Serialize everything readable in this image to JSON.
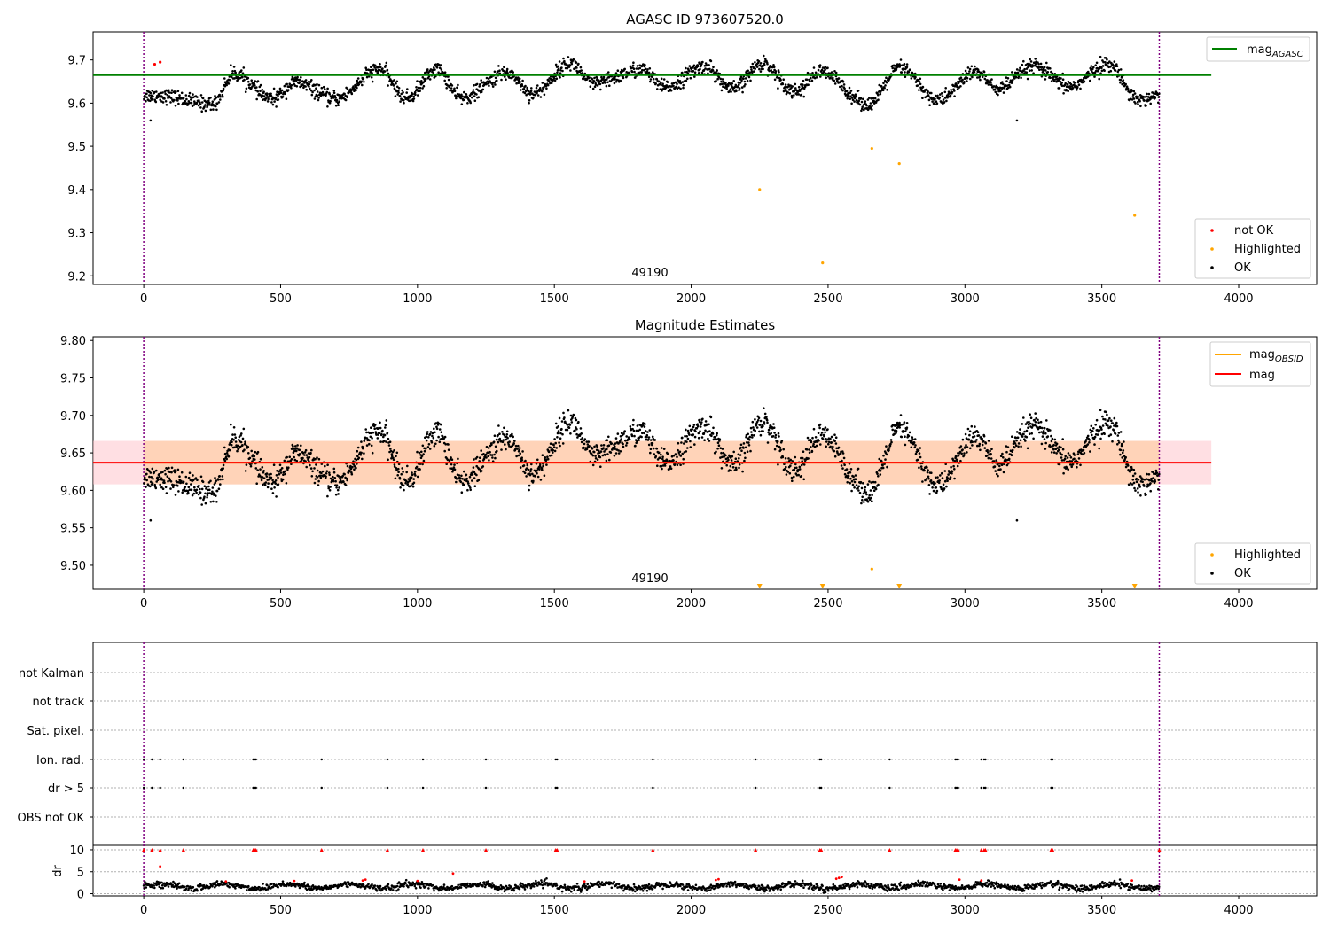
{
  "colors": {
    "ok": "#000000",
    "not_ok": "#ff0000",
    "highlighted": "#ffa500",
    "mag_agasc": "#008000",
    "mag_obsid": "#ffa500",
    "mag": "#ff0000",
    "obs_marker": "#800080"
  },
  "chart_data": [
    {
      "type": "scatter",
      "title": "AGASC ID 973607520.0",
      "annotation": "49190",
      "xlim": [
        -185,
        4285
      ],
      "ylim": [
        9.18,
        9.765
      ],
      "xticks": [
        "0",
        "500",
        "1000",
        "1500",
        "2000",
        "2500",
        "3000",
        "3500",
        "4000"
      ],
      "yticks": [
        "9.2",
        "9.3",
        "9.4",
        "9.5",
        "9.6",
        "9.7"
      ],
      "obs_boundaries": [
        0,
        3710
      ],
      "mag_agasc": {
        "value": 9.665,
        "x_range": [
          -185,
          3900
        ]
      },
      "ok_series": {
        "name": "OK",
        "baseline": 9.638,
        "x_range": [
          0,
          3710
        ],
        "peaks": [
          [
            50,
            9.618
          ],
          [
            250,
            9.598
          ],
          [
            330,
            9.668
          ],
          [
            470,
            9.61
          ],
          [
            555,
            9.648
          ],
          [
            700,
            9.61
          ],
          [
            860,
            9.678
          ],
          [
            960,
            9.612
          ],
          [
            1070,
            9.678
          ],
          [
            1160,
            9.612
          ],
          [
            1330,
            9.67
          ],
          [
            1420,
            9.622
          ],
          [
            1560,
            9.692
          ],
          [
            1640,
            9.645
          ],
          [
            1820,
            9.678
          ],
          [
            1900,
            9.636
          ],
          [
            2050,
            9.685
          ],
          [
            2150,
            9.632
          ],
          [
            2260,
            9.692
          ],
          [
            2380,
            9.628
          ],
          [
            2470,
            9.672
          ],
          [
            2650,
            9.598
          ],
          [
            2760,
            9.682
          ],
          [
            2900,
            9.607
          ],
          [
            3040,
            9.672
          ],
          [
            3120,
            9.634
          ],
          [
            3250,
            9.685
          ],
          [
            3380,
            9.638
          ],
          [
            3520,
            9.69
          ],
          [
            3640,
            9.608
          ],
          [
            3710,
            9.618
          ]
        ]
      },
      "not_ok_points": [
        [
          40,
          9.69
        ],
        [
          60,
          9.695
        ]
      ],
      "highlighted_points": [
        [
          2250,
          9.4
        ],
        [
          2480,
          9.23
        ],
        [
          2660,
          9.495
        ],
        [
          2760,
          9.46
        ],
        [
          3620,
          9.34
        ]
      ],
      "outliers": [
        [
          3190,
          9.56
        ],
        [
          25,
          9.56
        ]
      ],
      "legend_top": [
        "mag_{AGASC}"
      ],
      "legend_bottom": [
        "not OK",
        "Highlighted",
        "OK"
      ]
    },
    {
      "type": "scatter",
      "title": "Magnitude Estimates",
      "annotation": "49190",
      "xlim": [
        -185,
        4285
      ],
      "ylim": [
        9.468,
        9.805
      ],
      "xticks": [
        "0",
        "500",
        "1000",
        "1500",
        "2000",
        "2500",
        "3000",
        "3500",
        "4000"
      ],
      "yticks": [
        "9.50",
        "9.55",
        "9.60",
        "9.65",
        "9.70",
        "9.75",
        "9.80"
      ],
      "obs_boundaries": [
        0,
        3710
      ],
      "mag": {
        "value": 9.637,
        "x_range": [
          -185,
          3900
        ]
      },
      "mag_obsid": {
        "value": 9.637,
        "x_range": [
          0,
          3710
        ]
      },
      "mag_band": {
        "low": 9.608,
        "high": 9.666,
        "x_range": [
          -185,
          3900
        ]
      },
      "obsid_band": {
        "low": 9.608,
        "high": 9.666,
        "x_range": [
          0,
          3710
        ]
      },
      "highlighted_points": [
        [
          2660,
          9.495
        ]
      ],
      "highlighted_clipped_x": [
        2250,
        2480,
        2760,
        3620
      ],
      "outliers": [
        [
          3190,
          9.56
        ],
        [
          25,
          9.56
        ]
      ],
      "legend_top": [
        "mag_{OBSID}",
        "mag"
      ],
      "legend_bottom": [
        "Highlighted",
        "OK"
      ]
    },
    {
      "type": "scatter",
      "xlim": [
        -185,
        4285
      ],
      "xticks": [
        "0",
        "500",
        "1000",
        "1500",
        "2000",
        "2500",
        "3000",
        "3500",
        "4000"
      ],
      "obs_boundaries": [
        0,
        3710
      ],
      "flag_rows": [
        "not Kalman",
        "not track",
        "Sat. pixel.",
        "Ion. rad.",
        "dr > 5",
        "OBS not OK"
      ],
      "flag_events_x": [
        0,
        30,
        60,
        145,
        400,
        405,
        410,
        650,
        890,
        1020,
        1250,
        1505,
        1510,
        1860,
        2235,
        2470,
        2475,
        2725,
        2965,
        2970,
        2975,
        3060,
        3070,
        3075,
        3315,
        3320,
        3710
      ],
      "not_kalman_x": [
        3710
      ],
      "dr": {
        "ylabel": "dr",
        "ylim": [
          -0.5,
          11
        ],
        "yticks": [
          "0",
          "5",
          "10"
        ],
        "baseline": 1.7,
        "x_range": [
          0,
          3710
        ],
        "clip_value": 10,
        "clipped_x": [
          0,
          30,
          60,
          145,
          400,
          405,
          410,
          650,
          890,
          1020,
          1250,
          1505,
          1510,
          1860,
          2235,
          2470,
          2475,
          2725,
          2965,
          2970,
          2975,
          3060,
          3070,
          3075,
          3315,
          3320,
          3710
        ],
        "red_points": [
          [
            60,
            6.2
          ],
          [
            1130,
            4.6
          ],
          [
            300,
            2.8
          ],
          [
            800,
            3.0
          ],
          [
            810,
            3.2
          ],
          [
            2090,
            3.1
          ],
          [
            2100,
            3.3
          ],
          [
            2530,
            3.4
          ],
          [
            2540,
            3.6
          ],
          [
            2550,
            3.8
          ],
          [
            2980,
            3.2
          ],
          [
            3060,
            3.0
          ],
          [
            550,
            2.9
          ],
          [
            1000,
            2.9
          ],
          [
            1610,
            2.8
          ],
          [
            3610,
            3.0
          ]
        ]
      }
    }
  ]
}
